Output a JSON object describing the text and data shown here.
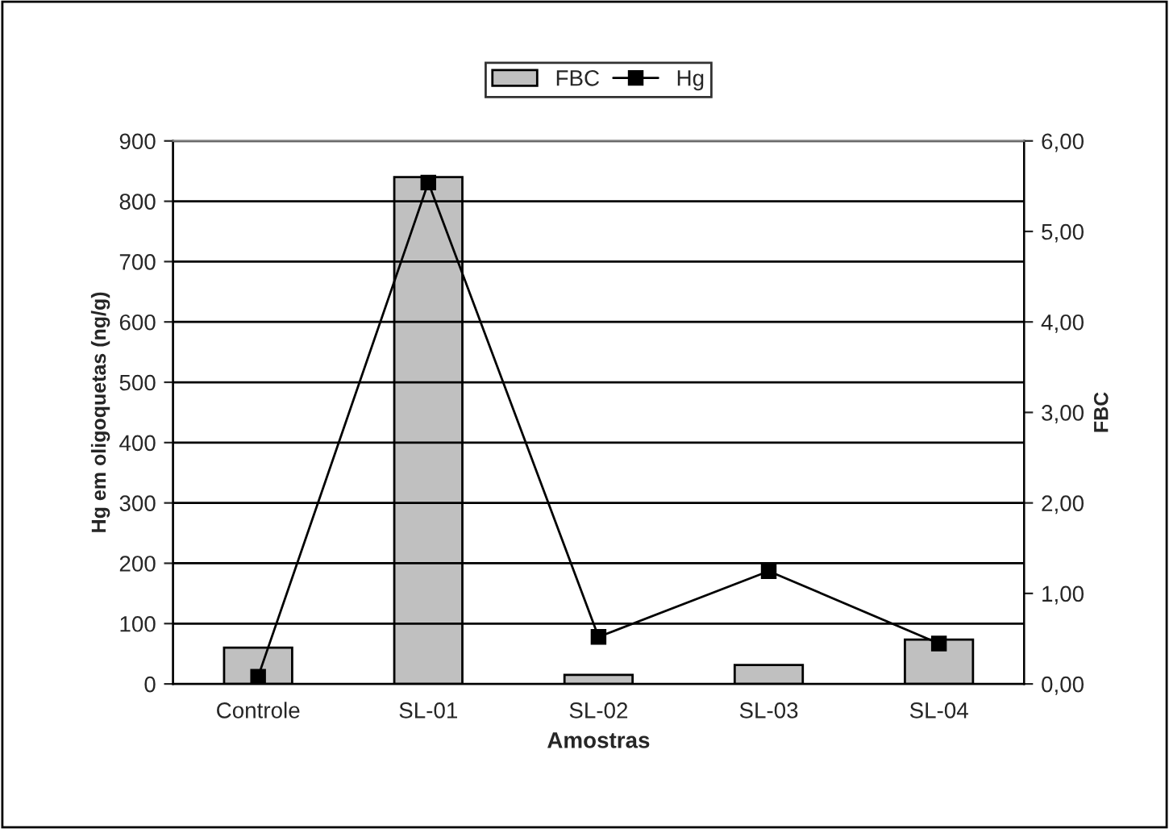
{
  "chart_data": {
    "type": "bar",
    "xlabel": "Amostras",
    "ylabel": "Hg em oligoquetas (ng/g)",
    "y2label": "FBC",
    "categories": [
      "Controle",
      "SL-01",
      "SL-02",
      "SL-03",
      "SL-04"
    ],
    "series": [
      {
        "name": "FBC",
        "axis": "y2",
        "color": "#c0c0c0",
        "values": [
          0.4,
          5.6,
          0.1,
          0.21,
          0.49
        ]
      },
      {
        "name": "Hg",
        "type": "line",
        "axis": "y",
        "color": "#000000",
        "marker": "square",
        "values": [
          12,
          831,
          78,
          187,
          67
        ]
      }
    ],
    "ylim": [
      0,
      900
    ],
    "yticks": [
      0,
      100,
      200,
      300,
      400,
      500,
      600,
      700,
      800,
      900
    ],
    "y2lim": [
      0,
      6
    ],
    "y2ticks": [
      {
        "value": 0,
        "label": "0,00"
      },
      {
        "value": 1,
        "label": "1,00"
      },
      {
        "value": 2,
        "label": "2,00"
      },
      {
        "value": 3,
        "label": "3,00"
      },
      {
        "value": 4,
        "label": "4,00"
      },
      {
        "value": 5,
        "label": "5,00"
      },
      {
        "value": 6,
        "label": "6,00"
      }
    ],
    "grid": "y",
    "legend": "top"
  }
}
